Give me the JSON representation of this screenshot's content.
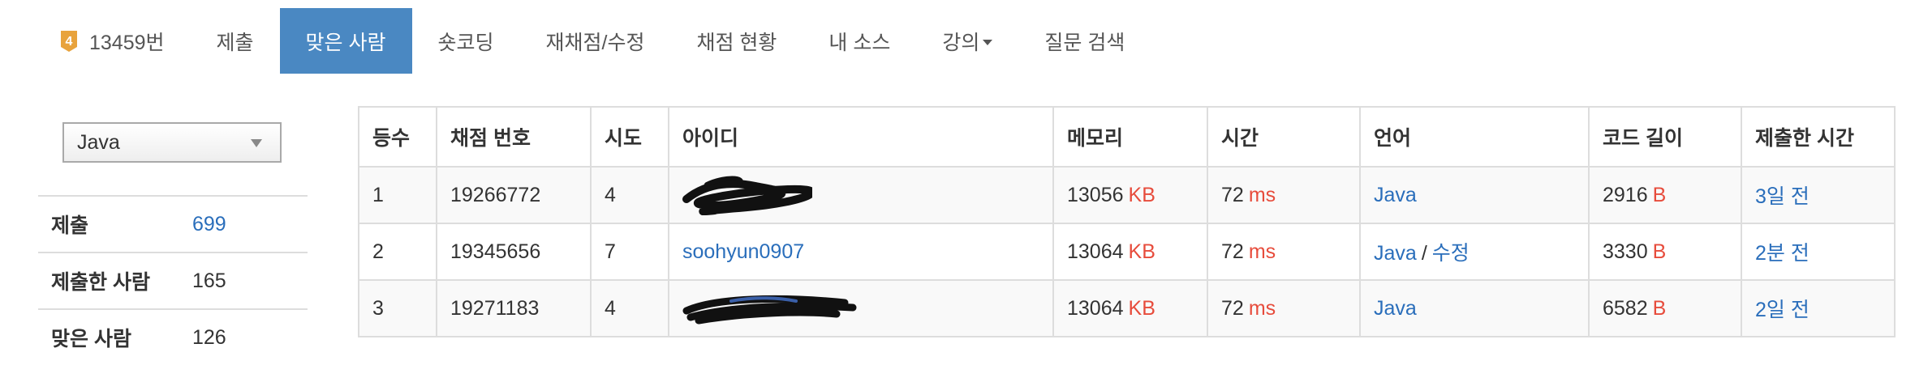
{
  "nav": {
    "problem_number": "13459번",
    "submit": "제출",
    "correct_users": "맞은 사람",
    "short_coding": "숏코딩",
    "rejudge": "재채점/수정",
    "judge_status": "채점 현황",
    "my_source": "내 소스",
    "lecture": "강의",
    "question_search": "질문 검색"
  },
  "tier_badge": {
    "label": "4",
    "color": "#e8a33d"
  },
  "language_select": {
    "selected": "Java"
  },
  "stats": [
    {
      "label": "제출",
      "value": "699"
    },
    {
      "label": "제출한 사람",
      "value": "165"
    },
    {
      "label": "맞은 사람",
      "value": "126"
    }
  ],
  "table": {
    "headers": [
      "등수",
      "채점 번호",
      "시도",
      "아이디",
      "메모리",
      "시간",
      "언어",
      "코드 길이",
      "제출한 시간"
    ],
    "units": {
      "memory": "KB",
      "time": "ms",
      "code": "B"
    },
    "rows": [
      {
        "rank": "1",
        "submission": "19266772",
        "tries": "4",
        "user": "",
        "memory": "13056",
        "time": "72",
        "lang": "Java",
        "edit": "",
        "code_len": "2916",
        "submitted": "3일 전"
      },
      {
        "rank": "2",
        "submission": "19345656",
        "tries": "7",
        "user": "soohyun0907",
        "memory": "13064",
        "time": "72",
        "lang": "Java",
        "edit": "수정",
        "code_len": "3330",
        "submitted": "2분 전"
      },
      {
        "rank": "3",
        "submission": "19271183",
        "tries": "4",
        "user": "",
        "memory": "13064",
        "time": "72",
        "lang": "Java",
        "edit": "",
        "code_len": "6582",
        "submitted": "2일 전"
      }
    ]
  },
  "colors": {
    "accent": "#4a88c2",
    "link": "#2a6ebb",
    "unit": "#e74c3c"
  }
}
